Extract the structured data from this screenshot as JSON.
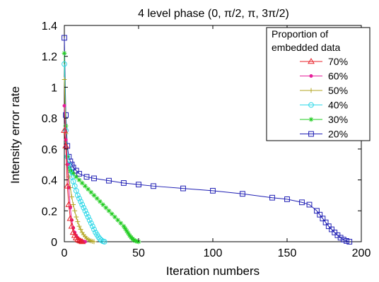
{
  "chart_data": {
    "type": "line",
    "title": "4 level phase (0, π/2, π, 3π/2)",
    "xlabel": "Iteration numbers",
    "ylabel": "Intensity error rate",
    "xlim": [
      0,
      200
    ],
    "ylim": [
      0,
      1.4
    ],
    "xticks": [
      0,
      50,
      100,
      150,
      200
    ],
    "yticks": [
      0,
      0.2,
      0.4,
      0.6,
      0.8,
      1.0,
      1.2,
      1.4
    ],
    "xtick_labels": [
      "0",
      "50",
      "100",
      "150",
      "200"
    ],
    "ytick_labels": [
      "0",
      "0.2",
      "0.4",
      "0.6",
      "0.8",
      "1",
      "1.2",
      "1.4"
    ],
    "grid": false,
    "legend_title": "Proportion of embedded data",
    "legend_position": "top-right",
    "series": [
      {
        "name": "70%",
        "color": "#e8222a",
        "marker": "triangle",
        "x": [
          0,
          1,
          2,
          3,
          4,
          5,
          6,
          7,
          8,
          9,
          10,
          11,
          12
        ],
        "y": [
          0.72,
          0.62,
          0.36,
          0.24,
          0.15,
          0.1,
          0.06,
          0.04,
          0.025,
          0.015,
          0.008,
          0.004,
          0.0
        ]
      },
      {
        "name": "60%",
        "color": "#e61e9a",
        "marker": "dot",
        "x": [
          0,
          1,
          2,
          3,
          4,
          5,
          6,
          7,
          8,
          9,
          10,
          11,
          12,
          13,
          14
        ],
        "y": [
          0.88,
          0.66,
          0.5,
          0.35,
          0.22,
          0.14,
          0.09,
          0.06,
          0.04,
          0.025,
          0.015,
          0.008,
          0.004,
          0.002,
          0.0
        ]
      },
      {
        "name": "50%",
        "color": "#b3a623",
        "marker": "plus",
        "x": [
          0,
          1,
          2,
          3,
          4,
          5,
          6,
          7,
          8,
          9,
          10,
          11,
          12,
          13,
          14,
          15,
          16,
          17,
          18,
          19,
          20
        ],
        "y": [
          1.05,
          0.7,
          0.5,
          0.42,
          0.35,
          0.29,
          0.24,
          0.2,
          0.16,
          0.13,
          0.1,
          0.08,
          0.06,
          0.045,
          0.033,
          0.023,
          0.015,
          0.009,
          0.005,
          0.002,
          0.0
        ]
      },
      {
        "name": "40%",
        "color": "#2fd8e8",
        "marker": "circle",
        "x": [
          0,
          1,
          2,
          3,
          4,
          5,
          6,
          7,
          8,
          9,
          10,
          11,
          12,
          13,
          14,
          15,
          16,
          17,
          18,
          19,
          20,
          21,
          22,
          23,
          24,
          25,
          26,
          27
        ],
        "y": [
          1.15,
          0.72,
          0.55,
          0.5,
          0.46,
          0.42,
          0.39,
          0.36,
          0.33,
          0.3,
          0.28,
          0.26,
          0.24,
          0.22,
          0.2,
          0.18,
          0.16,
          0.14,
          0.12,
          0.1,
          0.08,
          0.06,
          0.045,
          0.03,
          0.018,
          0.009,
          0.003,
          0.0
        ]
      },
      {
        "name": "30%",
        "color": "#22cc22",
        "marker": "star",
        "x": [
          0,
          1,
          2,
          3,
          4,
          5,
          6,
          8,
          10,
          12,
          14,
          16,
          18,
          20,
          22,
          24,
          26,
          28,
          30,
          32,
          34,
          36,
          38,
          40,
          41,
          42,
          43,
          44,
          45,
          46,
          47,
          48,
          49,
          50
        ],
        "y": [
          1.22,
          0.75,
          0.55,
          0.48,
          0.46,
          0.45,
          0.44,
          0.42,
          0.4,
          0.38,
          0.36,
          0.34,
          0.32,
          0.3,
          0.28,
          0.26,
          0.24,
          0.22,
          0.2,
          0.18,
          0.16,
          0.14,
          0.12,
          0.1,
          0.085,
          0.07,
          0.055,
          0.04,
          0.028,
          0.018,
          0.01,
          0.005,
          0.002,
          0.0
        ]
      },
      {
        "name": "20%",
        "color": "#1f1fb4",
        "marker": "square",
        "x": [
          0,
          1,
          2,
          3,
          4,
          5,
          6,
          8,
          10,
          15,
          20,
          30,
          40,
          50,
          60,
          80,
          100,
          120,
          140,
          150,
          160,
          165,
          170,
          172,
          174,
          176,
          178,
          180,
          182,
          184,
          186,
          188,
          190,
          192
        ],
        "y": [
          1.32,
          0.82,
          0.62,
          0.55,
          0.52,
          0.5,
          0.48,
          0.46,
          0.44,
          0.42,
          0.41,
          0.395,
          0.38,
          0.37,
          0.36,
          0.345,
          0.33,
          0.31,
          0.285,
          0.275,
          0.255,
          0.24,
          0.2,
          0.175,
          0.15,
          0.125,
          0.1,
          0.08,
          0.06,
          0.042,
          0.026,
          0.014,
          0.005,
          0.0
        ]
      }
    ]
  }
}
